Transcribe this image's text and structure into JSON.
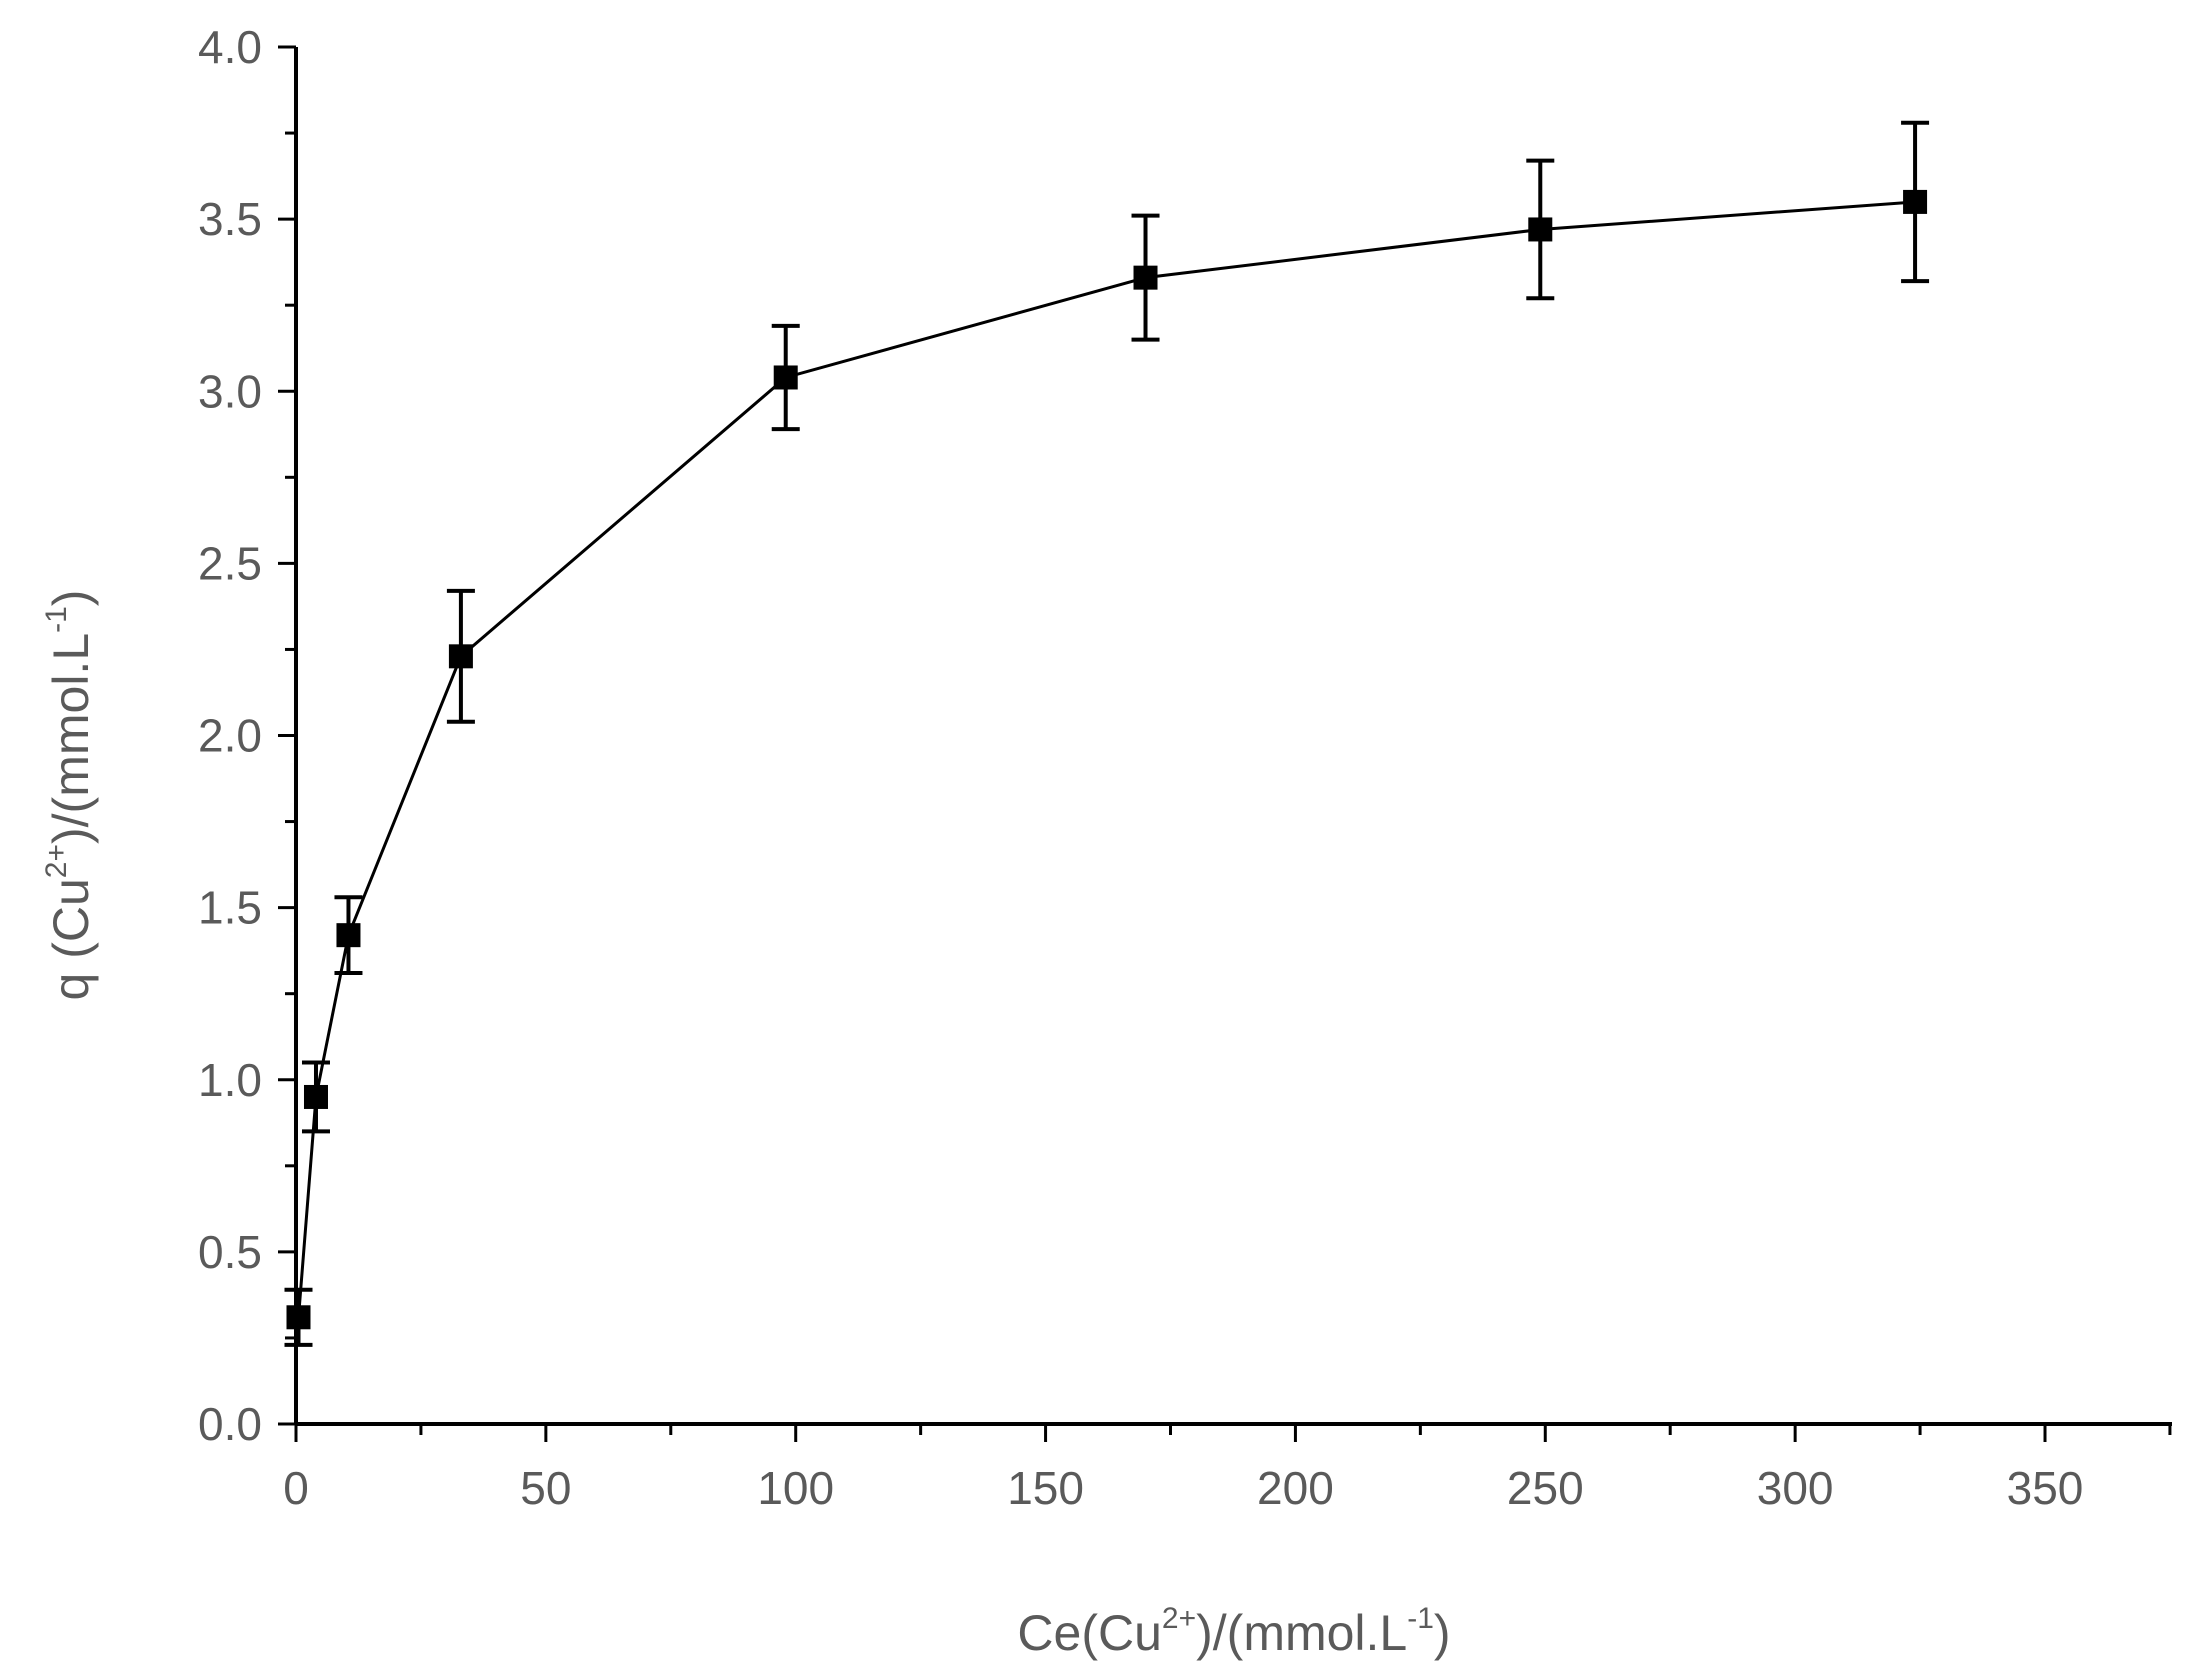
{
  "chart_data": {
    "type": "scatter",
    "title": "",
    "xlabel": {
      "main": "Ce(Cu",
      "sup": "2+",
      "mid": ")/(mmol.L",
      "sup2": "-1",
      "end": ")"
    },
    "ylabel": {
      "main": "q (Cu",
      "sup": "2+",
      "mid": ")/(mmol.L",
      "sup2": "-1",
      "end": ")"
    },
    "xlim": [
      0,
      375
    ],
    "ylim": [
      0,
      4.0
    ],
    "x_ticks": [
      "0",
      "50",
      "100",
      "150",
      "200",
      "250",
      "300",
      "350"
    ],
    "y_ticks": [
      "0.0",
      "0.5",
      "1.0",
      "1.5",
      "2.0",
      "2.5",
      "3.0",
      "3.5",
      "4.0"
    ],
    "grid": false,
    "legend": "none",
    "series": [
      {
        "marker": "square",
        "line": true,
        "points": [
          {
            "x": 0.5,
            "y": 0.31,
            "err": 0.08
          },
          {
            "x": 4,
            "y": 0.95,
            "err": 0.1
          },
          {
            "x": 10.5,
            "y": 1.42,
            "err": 0.11
          },
          {
            "x": 33,
            "y": 2.23,
            "err": 0.19
          },
          {
            "x": 98,
            "y": 3.04,
            "err": 0.15
          },
          {
            "x": 170,
            "y": 3.33,
            "err": 0.18
          },
          {
            "x": 249,
            "y": 3.47,
            "err": 0.2
          },
          {
            "x": 324,
            "y": 3.55,
            "err": 0.23
          }
        ]
      }
    ]
  }
}
